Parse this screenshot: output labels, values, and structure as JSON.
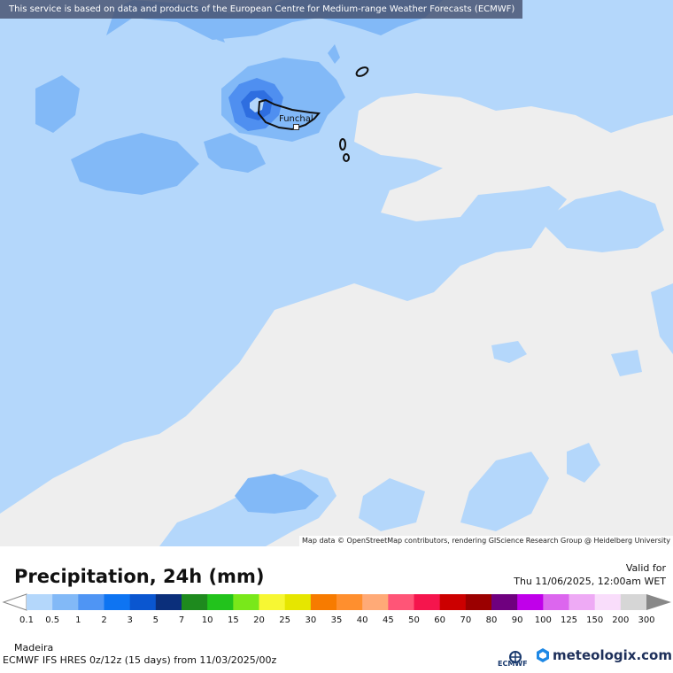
{
  "map": {
    "source_banner": "This service is based on data and products of the European Centre for Medium-range Weather Forecasts (ECMWF)",
    "attribution": "Map data © OpenStreetMap contributors, rendering GIScience Research Group @ Heidelberg University",
    "city": "Funchal",
    "colors": {
      "no_precip": "#eeeeee",
      "light_precip": "#b4d7fb",
      "moderate_precip": "#82b9f7",
      "heavier_precip": "#4f8ff0",
      "heavy_precip": "#2e6ee0",
      "land_outline": "#111111"
    }
  },
  "legend": {
    "title": "Precipitation, 24h (mm)",
    "valid_label": "Valid for",
    "valid_time": "Thu 11/06/2025, 12:00am WET",
    "region": "Madeira",
    "model_info": "ECMWF IFS HRES 0z/12z (15 days) from  11/03/2025/00z",
    "ecmwf_label": "ECMWF",
    "brand": "meteologix.com",
    "ticks": [
      "0.1",
      "0.5",
      "1",
      "2",
      "3",
      "5",
      "7",
      "10",
      "15",
      "20",
      "25",
      "30",
      "35",
      "40",
      "45",
      "50",
      "60",
      "70",
      "80",
      "90",
      "100",
      "125",
      "150",
      "200",
      "300"
    ],
    "colors": [
      "#b4d7fb",
      "#82b9f7",
      "#4f95f4",
      "#0e74f2",
      "#0a56d0",
      "#0b2f7b",
      "#1e8a1e",
      "#22c31c",
      "#79e81a",
      "#f7f733",
      "#e6e600",
      "#f77b00",
      "#ff8f2e",
      "#ffaa77",
      "#ff5577",
      "#f5154d",
      "#cc0000",
      "#9b0000",
      "#6f007f",
      "#c000ea",
      "#dc66ee",
      "#eeaaf5",
      "#f9ddfb",
      "#d6d6d6"
    ]
  }
}
